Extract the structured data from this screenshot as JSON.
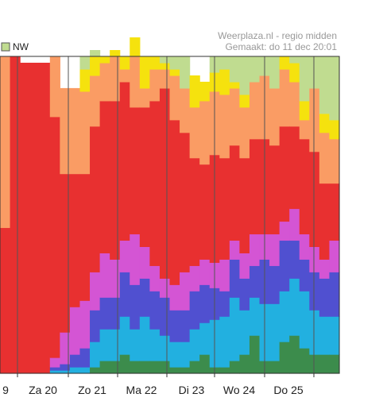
{
  "credit": {
    "line1": "Weerplaza.nl - regio midden",
    "line2": "Gemaakt: do 11 dec 20:01"
  },
  "chart_data": {
    "type": "area",
    "stacked": true,
    "normalized_percent": true,
    "ylim": [
      0,
      100
    ],
    "legend": {
      "visible_entries": [
        "NW"
      ],
      "placement": "top-left"
    },
    "x_tick_labels": [
      "9",
      "Za 20",
      "Zo 21",
      "Ma 22",
      "Di 23",
      "Wo 24",
      "Do 25"
    ],
    "bands": [
      {
        "color": "#3c8c4c",
        "values": [
          0,
          0,
          0,
          0,
          0,
          0,
          0,
          0,
          0,
          2,
          4,
          4,
          6,
          4,
          4,
          4,
          4,
          2,
          2,
          4,
          6,
          2,
          2,
          4,
          6,
          12,
          4,
          4,
          10,
          12,
          8,
          6,
          6,
          6
        ]
      },
      {
        "color": "#22b0e0",
        "values": [
          0,
          0,
          0,
          0,
          0,
          1,
          1,
          2,
          2,
          8,
          10,
          10,
          12,
          10,
          14,
          10,
          8,
          8,
          8,
          10,
          10,
          15,
          16,
          20,
          14,
          12,
          18,
          18,
          16,
          18,
          18,
          14,
          12,
          12
        ]
      },
      {
        "color": "#5050d0",
        "values": [
          0,
          0,
          0,
          0,
          0,
          1,
          2,
          4,
          6,
          10,
          10,
          10,
          14,
          14,
          12,
          12,
          12,
          10,
          10,
          12,
          12,
          10,
          8,
          12,
          10,
          10,
          14,
          12,
          16,
          12,
          10,
          12,
          12,
          14
        ]
      },
      {
        "color": "#d455d4",
        "values": [
          0,
          0,
          0,
          0,
          0,
          3,
          10,
          15,
          15,
          12,
          14,
          12,
          10,
          16,
          10,
          8,
          6,
          8,
          12,
          8,
          8,
          8,
          10,
          6,
          8,
          10,
          8,
          10,
          6,
          10,
          8,
          8,
          6,
          10
        ]
      },
      {
        "color": "#e83030",
        "values": [
          46,
          100,
          98,
          98,
          98,
          76,
          50,
          42,
          40,
          46,
          48,
          50,
          50,
          40,
          44,
          52,
          60,
          52,
          44,
          34,
          30,
          34,
          32,
          30,
          30,
          30,
          30,
          28,
          30,
          26,
          30,
          30,
          24,
          18
        ]
      },
      {
        "color": "#fa9c64",
        "values": [
          54,
          0,
          0,
          0,
          0,
          19,
          27,
          27,
          26,
          16,
          12,
          14,
          4,
          16,
          6,
          10,
          6,
          14,
          14,
          16,
          20,
          20,
          20,
          18,
          16,
          18,
          20,
          18,
          18,
          14,
          6,
          20,
          16,
          14
        ]
      },
      {
        "color": "#f5e20e",
        "values": [
          0,
          0,
          0,
          0,
          0,
          0,
          0,
          0,
          7,
          6,
          2,
          2,
          4,
          6,
          10,
          4,
          2,
          2,
          0,
          10,
          6,
          6,
          8,
          2,
          4,
          0,
          0,
          0,
          4,
          6,
          6,
          0,
          6,
          6
        ]
      },
      {
        "color": "#c0dc90",
        "values": [
          0,
          0,
          0,
          0,
          0,
          0,
          0,
          0,
          4,
          2,
          0,
          0,
          0,
          0,
          0,
          0,
          2,
          4,
          10,
          0,
          0,
          5,
          4,
          8,
          12,
          8,
          6,
          10,
          0,
          2,
          14,
          10,
          18,
          20
        ]
      }
    ]
  }
}
